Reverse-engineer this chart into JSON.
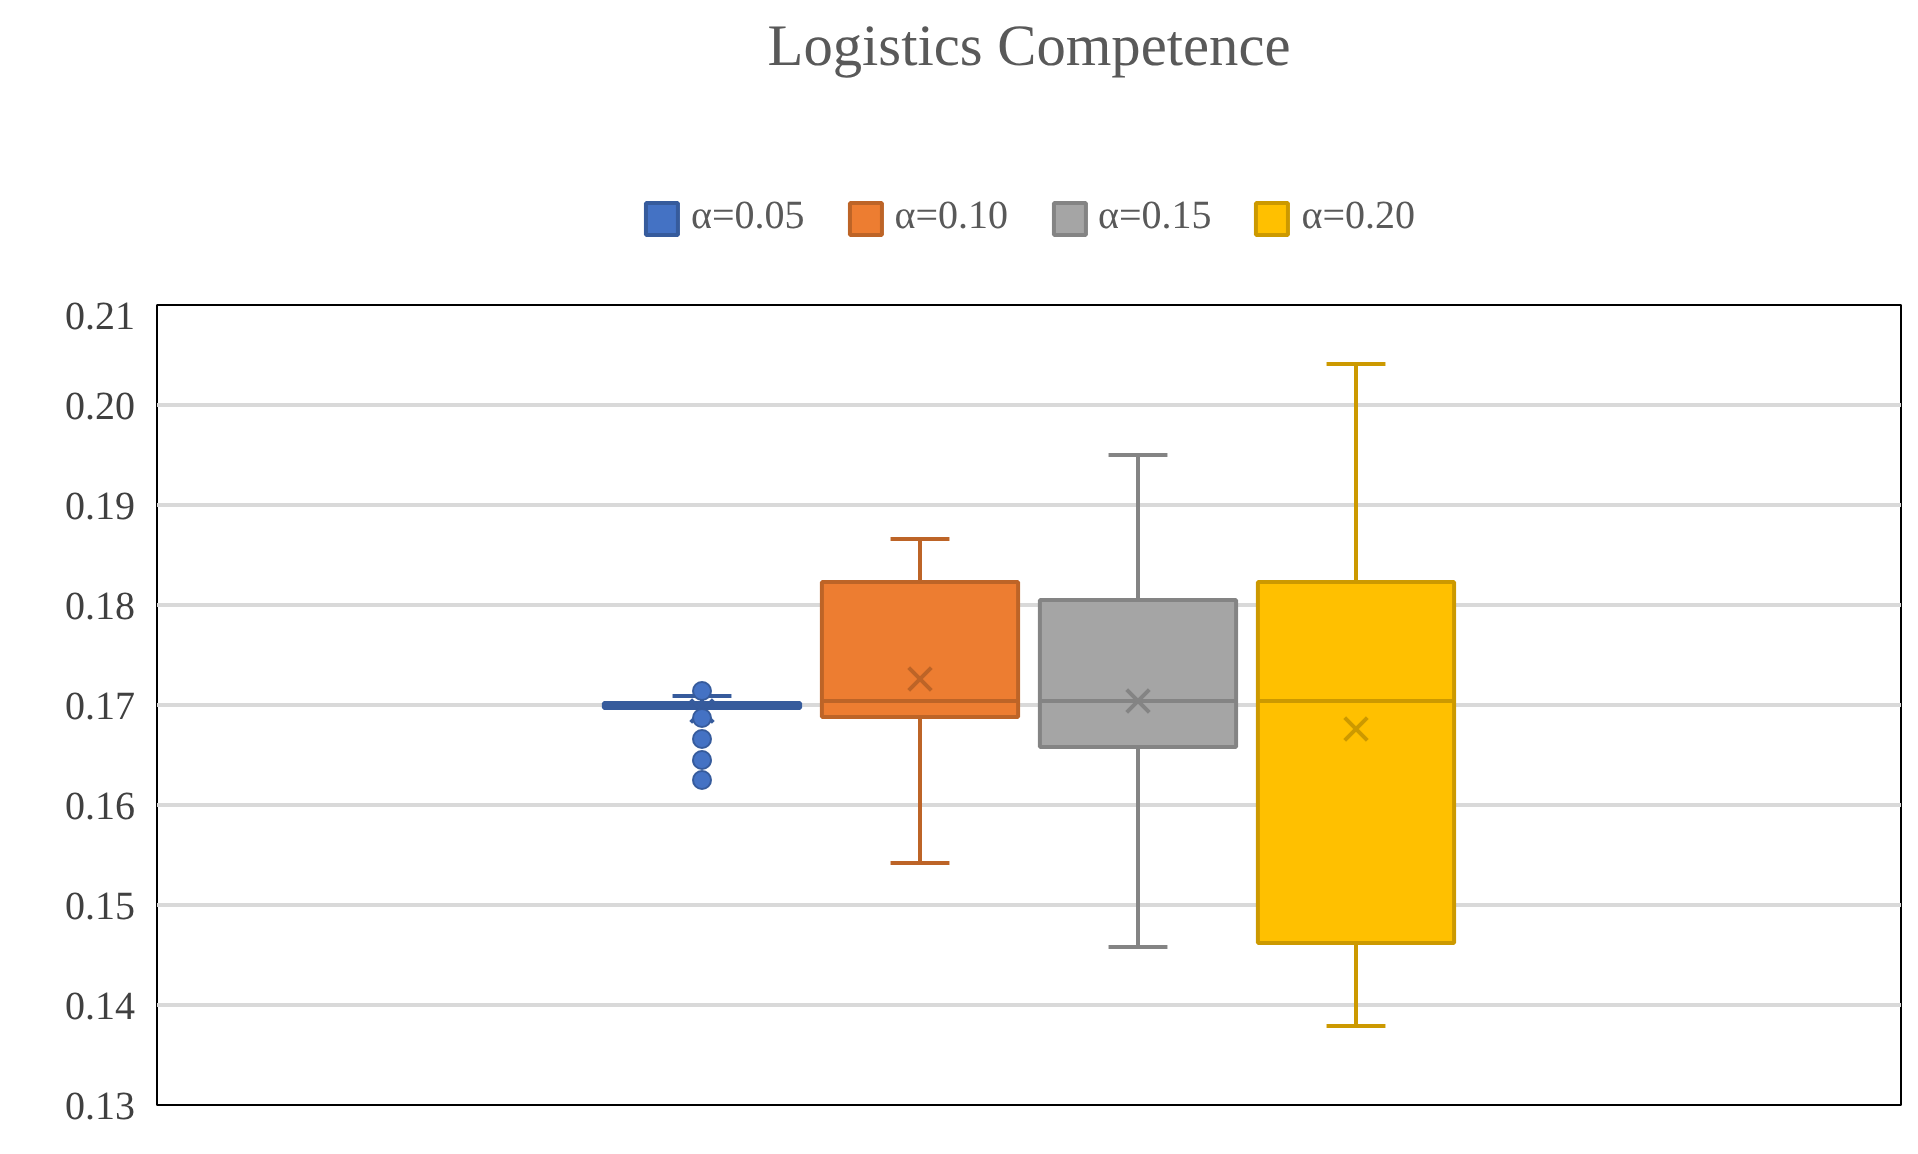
{
  "chart_data": {
    "type": "box",
    "title": "Logistics Competence",
    "categories": [
      null
    ],
    "series": [
      {
        "name": "α=0.05",
        "color": "#4472c4",
        "boxes": [
          {
            "low": 0.1697,
            "q1": 0.1697,
            "median": 0.17,
            "q3": 0.1702,
            "high": 0.1709,
            "mean": 0.1694,
            "outliers": [
              0.1714,
              0.1687,
              0.1666,
              0.1645,
              0.1625
            ]
          }
        ]
      },
      {
        "name": "α=0.10",
        "color": "#ed7d31",
        "boxes": [
          {
            "low": 0.1542,
            "q1": 0.1688,
            "median": 0.1704,
            "q3": 0.1823,
            "high": 0.1866,
            "mean": 0.1726
          }
        ]
      },
      {
        "name": "α=0.15",
        "color": "#a5a5a5",
        "boxes": [
          {
            "low": 0.1458,
            "q1": 0.1658,
            "median": 0.1704,
            "q3": 0.1805,
            "high": 0.195,
            "mean": 0.1704
          }
        ]
      },
      {
        "name": "α=0.20",
        "color": "#ffc000",
        "boxes": [
          {
            "low": 0.1379,
            "q1": 0.1462,
            "median": 0.1704,
            "q3": 0.1823,
            "high": 0.2041,
            "mean": 0.1676
          }
        ]
      }
    ],
    "ylim": [
      0.13,
      0.21
    ],
    "yticks": [
      0.13,
      0.14,
      0.15,
      0.16,
      0.17,
      0.18,
      0.19,
      {
        "value": 0.2,
        "label": "0.20"
      },
      0.21
    ],
    "grid": "y",
    "legend": "top",
    "tick_labels": "y"
  }
}
